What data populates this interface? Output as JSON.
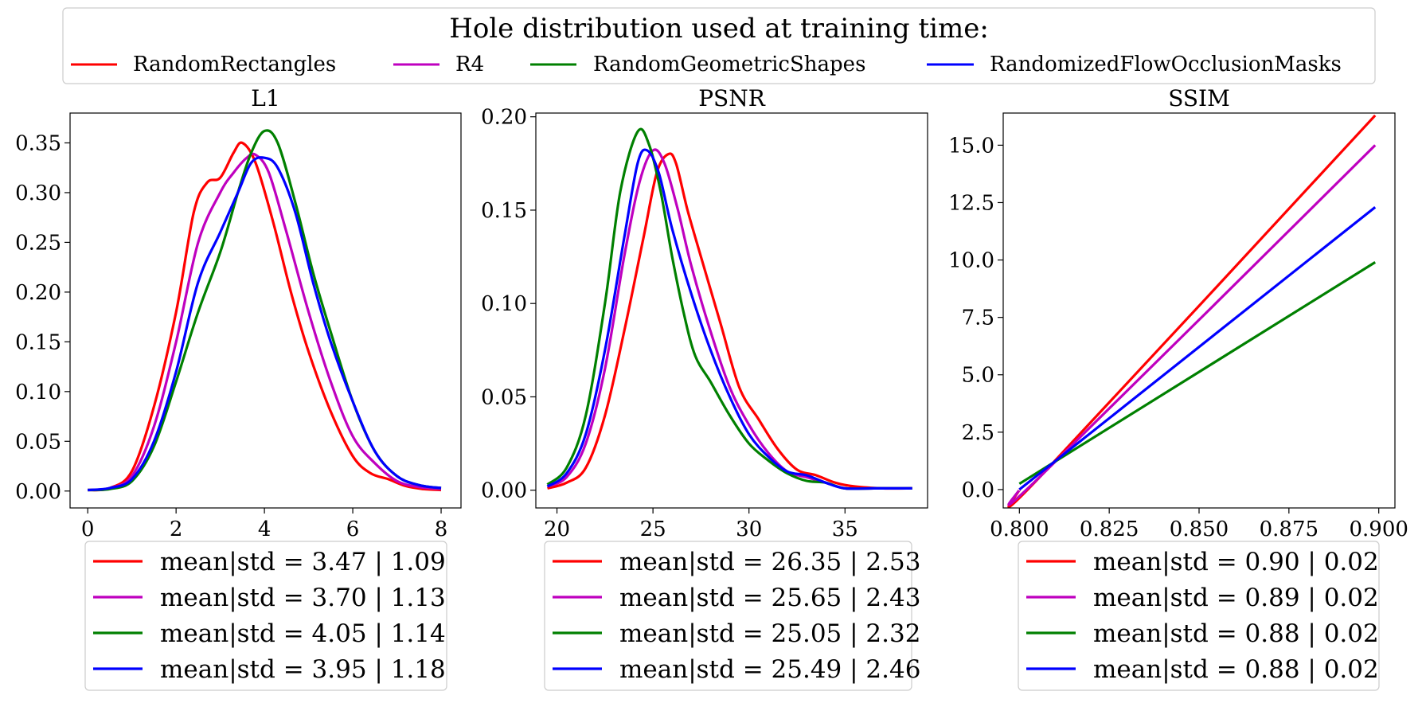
{
  "header": {
    "title": "Hole distribution used at training time:",
    "entries": [
      {
        "label": "RandomRectangles",
        "color": "#ff0000"
      },
      {
        "label": "R4",
        "color": "#bf00bf"
      },
      {
        "label": "RandomGeometricShapes",
        "color": "#008000"
      },
      {
        "label": "RandomizedFlowOcclusionMasks",
        "color": "#0000ff"
      }
    ]
  },
  "chart_data": [
    {
      "type": "line",
      "title": "L1",
      "xlim": [
        -0.4,
        8.45
      ],
      "ylim": [
        -0.017,
        0.38
      ],
      "xticks": [
        0,
        2,
        4,
        6,
        8
      ],
      "xtick_labels": [
        "0",
        "2",
        "4",
        "6",
        "8"
      ],
      "yticks": [
        0,
        0.05,
        0.1,
        0.15,
        0.2,
        0.25,
        0.3,
        0.35
      ],
      "ytick_labels": [
        "0.00",
        "0.05",
        "0.10",
        "0.15",
        "0.20",
        "0.25",
        "0.30",
        "0.35"
      ],
      "legend": [
        "mean|std = 3.47 | 1.09",
        "mean|std = 3.70 | 1.13",
        "mean|std = 4.05 | 1.14",
        "mean|std = 3.95 | 1.18"
      ],
      "series": [
        {
          "name": "RandomRectangles",
          "color": "#ff0000",
          "x": [
            0,
            0.5,
            1.0,
            1.5,
            2.0,
            2.4,
            2.7,
            3.0,
            3.3,
            3.5,
            3.8,
            4.2,
            4.6,
            5.0,
            5.5,
            6.0,
            6.4,
            6.8,
            7.2,
            7.6,
            8.0
          ],
          "y": [
            0.001,
            0.003,
            0.02,
            0.085,
            0.18,
            0.28,
            0.31,
            0.315,
            0.34,
            0.35,
            0.33,
            0.27,
            0.2,
            0.14,
            0.08,
            0.035,
            0.018,
            0.012,
            0.005,
            0.002,
            0.001
          ]
        },
        {
          "name": "R4",
          "color": "#bf00bf",
          "x": [
            0,
            0.5,
            1.0,
            1.5,
            2.0,
            2.5,
            3.0,
            3.3,
            3.6,
            3.8,
            4.1,
            4.5,
            5.0,
            5.5,
            6.0,
            6.5,
            7.0,
            7.5,
            8.0
          ],
          "y": [
            0.001,
            0.003,
            0.015,
            0.065,
            0.15,
            0.25,
            0.3,
            0.32,
            0.335,
            0.338,
            0.32,
            0.26,
            0.18,
            0.11,
            0.055,
            0.028,
            0.01,
            0.004,
            0.002
          ]
        },
        {
          "name": "RandomGeometricShapes",
          "color": "#008000",
          "x": [
            0,
            0.5,
            1.0,
            1.5,
            2.0,
            2.5,
            3.0,
            3.4,
            3.7,
            4.0,
            4.3,
            4.7,
            5.1,
            5.5,
            6.0,
            6.5,
            7.0,
            7.5,
            8.0
          ],
          "y": [
            0.001,
            0.002,
            0.01,
            0.045,
            0.11,
            0.18,
            0.24,
            0.3,
            0.34,
            0.362,
            0.35,
            0.29,
            0.22,
            0.16,
            0.09,
            0.04,
            0.015,
            0.006,
            0.003
          ]
        },
        {
          "name": "RandomizedFlowOcclusionMasks",
          "color": "#0000ff",
          "x": [
            0,
            0.5,
            1.0,
            1.5,
            2.0,
            2.5,
            3.0,
            3.4,
            3.7,
            4.0,
            4.3,
            4.7,
            5.1,
            5.5,
            6.0,
            6.5,
            7.0,
            7.5,
            8.0
          ],
          "y": [
            0.001,
            0.003,
            0.012,
            0.05,
            0.12,
            0.21,
            0.26,
            0.3,
            0.33,
            0.335,
            0.325,
            0.28,
            0.21,
            0.15,
            0.09,
            0.04,
            0.015,
            0.006,
            0.003
          ]
        }
      ]
    },
    {
      "type": "line",
      "title": "PSNR",
      "xlim": [
        18.9,
        39.3
      ],
      "ylim": [
        -0.0095,
        0.202
      ],
      "xticks": [
        20,
        25,
        30,
        35
      ],
      "xtick_labels": [
        "20",
        "25",
        "30",
        "35"
      ],
      "yticks": [
        0,
        0.05,
        0.1,
        0.15,
        0.2
      ],
      "ytick_labels": [
        "0.00",
        "0.05",
        "0.10",
        "0.15",
        "0.20"
      ],
      "legend": [
        "mean|std = 26.35 | 2.53",
        "mean|std = 25.65 | 2.43",
        "mean|std = 25.05 | 2.32",
        "mean|std = 25.49 | 2.46"
      ],
      "series": [
        {
          "name": "RandomRectangles",
          "color": "#ff0000",
          "x": [
            19.5,
            20.5,
            21.5,
            22.5,
            23.5,
            24.5,
            25.2,
            25.8,
            26.2,
            26.8,
            27.5,
            28.5,
            29.5,
            30.5,
            31.5,
            32.5,
            33.5,
            34.5,
            35.5,
            37,
            38.5
          ],
          "y": [
            0.001,
            0.004,
            0.012,
            0.04,
            0.085,
            0.135,
            0.17,
            0.18,
            0.175,
            0.15,
            0.125,
            0.09,
            0.055,
            0.038,
            0.022,
            0.011,
            0.008,
            0.004,
            0.002,
            0.001,
            0.001
          ]
        },
        {
          "name": "R4",
          "color": "#bf00bf",
          "x": [
            19.5,
            20.5,
            21.5,
            22.5,
            23.5,
            24.3,
            25.0,
            25.6,
            26.3,
            27.0,
            28.0,
            29.0,
            30.0,
            31.0,
            32.0,
            33.0,
            34.0,
            35.0,
            36.5,
            38.5
          ],
          "y": [
            0.002,
            0.007,
            0.025,
            0.065,
            0.125,
            0.165,
            0.182,
            0.175,
            0.15,
            0.12,
            0.085,
            0.055,
            0.035,
            0.02,
            0.01,
            0.007,
            0.004,
            0.001,
            0.001,
            0.001
          ]
        },
        {
          "name": "RandomGeometricShapes",
          "color": "#008000",
          "x": [
            19.5,
            20.5,
            21.5,
            22.5,
            23.3,
            24.2,
            24.8,
            25.4,
            26.0,
            26.6,
            27.2,
            28.0,
            29.0,
            30.0,
            31.0,
            32.0,
            33.0,
            34.0,
            35.0,
            36.5,
            38.5
          ],
          "y": [
            0.003,
            0.012,
            0.04,
            0.1,
            0.16,
            0.192,
            0.185,
            0.16,
            0.125,
            0.095,
            0.072,
            0.058,
            0.04,
            0.025,
            0.016,
            0.009,
            0.005,
            0.004,
            0.001,
            0.001,
            0.001
          ]
        },
        {
          "name": "RandomizedFlowOcclusionMasks",
          "color": "#0000ff",
          "x": [
            19.5,
            20.5,
            21.5,
            22.5,
            23.5,
            24.2,
            24.7,
            25.3,
            26.0,
            27.0,
            28.0,
            29.0,
            30.0,
            31.0,
            32.0,
            33.0,
            34.0,
            35.0,
            36.5,
            38.5
          ],
          "y": [
            0.002,
            0.009,
            0.03,
            0.075,
            0.135,
            0.175,
            0.182,
            0.17,
            0.14,
            0.105,
            0.075,
            0.05,
            0.03,
            0.018,
            0.01,
            0.008,
            0.004,
            0.001,
            0.001,
            0.001
          ]
        }
      ]
    },
    {
      "type": "line",
      "title": "SSIM",
      "xlim": [
        0.7955,
        0.9045
      ],
      "ylim": [
        -0.8,
        16.4
      ],
      "xticks": [
        0.8,
        0.825,
        0.85,
        0.875,
        0.9
      ],
      "xtick_labels": [
        "0.800",
        "0.825",
        "0.850",
        "0.875",
        "0.900"
      ],
      "yticks": [
        0,
        2.5,
        5,
        7.5,
        10,
        12.5,
        15
      ],
      "ytick_labels": [
        "0.0",
        "2.5",
        "5.0",
        "7.5",
        "10.0",
        "12.5",
        "15.0"
      ],
      "legend": [
        "mean|std = 0.90 | 0.02",
        "mean|std = 0.89 | 0.02",
        "mean|std = 0.88 | 0.02",
        "mean|std = 0.88 | 0.02"
      ],
      "series": [
        {
          "name": "RandomRectangles",
          "color": "#ff0000",
          "x": [
            0.8,
            0.806,
            0.899
          ],
          "y": [
            0,
            0.6,
            16.3
          ]
        },
        {
          "name": "R4",
          "color": "#bf00bf",
          "x": [
            0.8,
            0.806,
            0.899
          ],
          "y": [
            0,
            0.6,
            15.0
          ]
        },
        {
          "name": "RandomGeometricShapes",
          "color": "#008000",
          "x": [
            0.8,
            0.899
          ],
          "y": [
            0.25,
            9.9
          ]
        },
        {
          "name": "RandomizedFlowOcclusionMasks",
          "color": "#0000ff",
          "x": [
            0.8,
            0.899
          ],
          "y": [
            0,
            12.3
          ]
        }
      ]
    }
  ]
}
